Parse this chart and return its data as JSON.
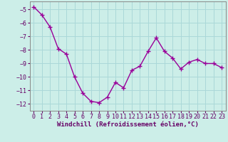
{
  "x": [
    0,
    1,
    2,
    3,
    4,
    5,
    6,
    7,
    8,
    9,
    10,
    11,
    12,
    13,
    14,
    15,
    16,
    17,
    18,
    19,
    20,
    21,
    22,
    23
  ],
  "y": [
    -4.8,
    -5.4,
    -6.3,
    -7.9,
    -8.3,
    -10.0,
    -11.2,
    -11.8,
    -11.9,
    -11.5,
    -10.4,
    -10.8,
    -9.5,
    -9.2,
    -8.1,
    -7.1,
    -8.1,
    -8.6,
    -9.4,
    -8.9,
    -8.7,
    -9.0,
    -9.0,
    -9.3
  ],
  "line_color": "#990099",
  "marker": "+",
  "markersize": 4,
  "linewidth": 1.0,
  "xlabel": "Windchill (Refroidissement éolien,°C)",
  "xlabel_fontsize": 6.5,
  "ylim": [
    -12.5,
    -4.4
  ],
  "xlim": [
    -0.5,
    23.5
  ],
  "yticks": [
    -12,
    -11,
    -10,
    -9,
    -8,
    -7,
    -6,
    -5
  ],
  "xticks": [
    0,
    1,
    2,
    3,
    4,
    5,
    6,
    7,
    8,
    9,
    10,
    11,
    12,
    13,
    14,
    15,
    16,
    17,
    18,
    19,
    20,
    21,
    22,
    23
  ],
  "grid_color": "#aad8d8",
  "background_color": "#cceee8",
  "tick_fontsize": 6.0,
  "spine_color": "#888888"
}
